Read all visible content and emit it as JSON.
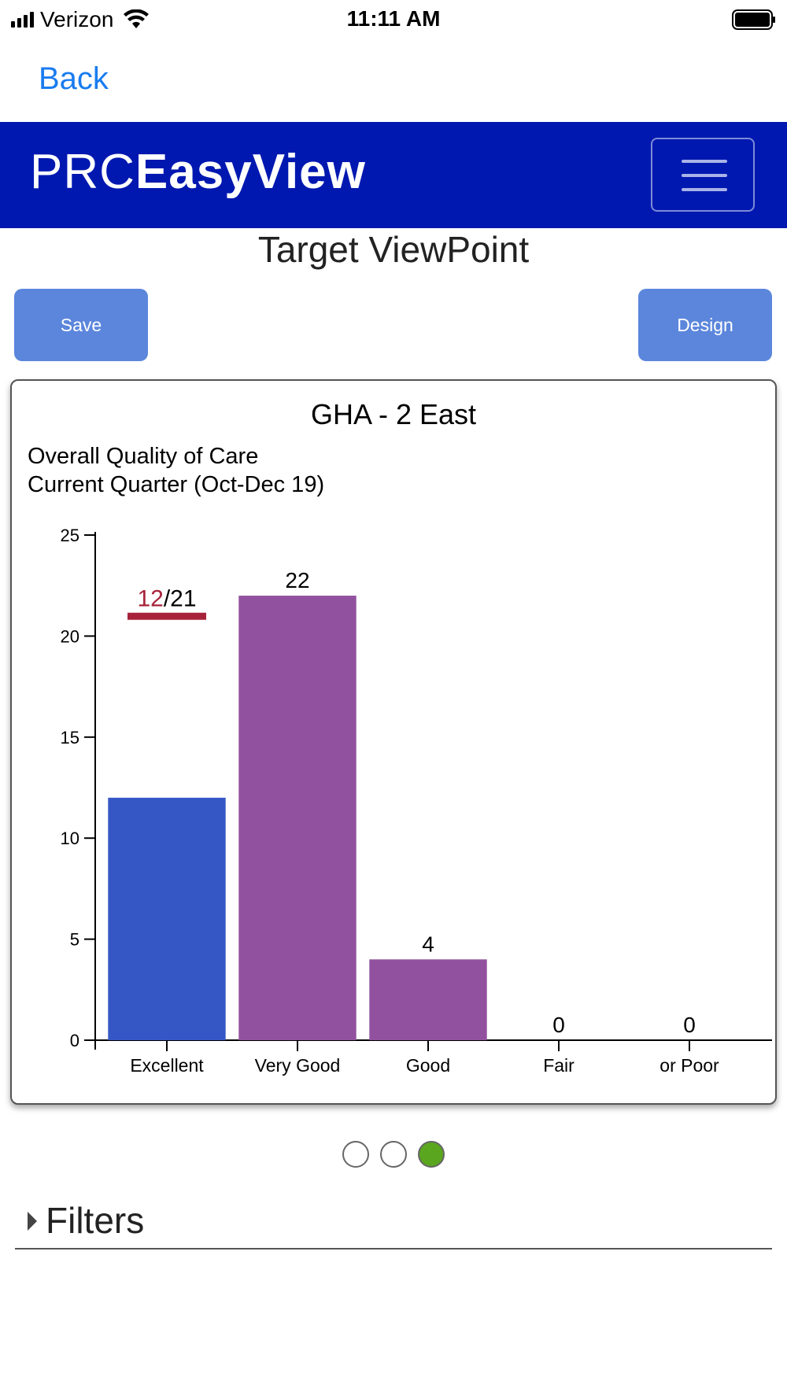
{
  "status": {
    "carrier": "Verizon",
    "time": "11:11 AM"
  },
  "nav": {
    "back_label": "Back"
  },
  "header": {
    "logo_light": "PRC",
    "logo_bold": "EasyView",
    "brand_color": "#0018b0",
    "menu_icon": "hamburger-icon"
  },
  "page": {
    "title": "Target ViewPoint"
  },
  "toolbar": {
    "save_label": "Save",
    "design_label": "Design",
    "button_color": "#5b86dc"
  },
  "chart_data": {
    "type": "bar",
    "title": "GHA - 2 East",
    "subtitle_line1": "Overall Quality of Care",
    "subtitle_line2": "Current Quarter (Oct-Dec 19)",
    "categories": [
      "Excellent",
      "Very Good",
      "Good",
      "Fair",
      "or Poor"
    ],
    "values": [
      12,
      22,
      4,
      0,
      0
    ],
    "value_labels": [
      "",
      "22",
      "4",
      "0",
      "0"
    ],
    "bar_colors": [
      "#3557c6",
      "#92519e",
      "#92519e",
      "#92519e",
      "#92519e"
    ],
    "ylim": [
      0,
      25
    ],
    "yticks": [
      0,
      5,
      10,
      15,
      20,
      25
    ],
    "target": {
      "category": "Excellent",
      "value": 21,
      "actual_label": "12",
      "separator": "/",
      "target_label": "21",
      "color": "#a8213a"
    }
  },
  "pagination": {
    "count": 3,
    "active": 2,
    "active_color": "#5aa61e"
  },
  "filters": {
    "label": "Filters"
  }
}
